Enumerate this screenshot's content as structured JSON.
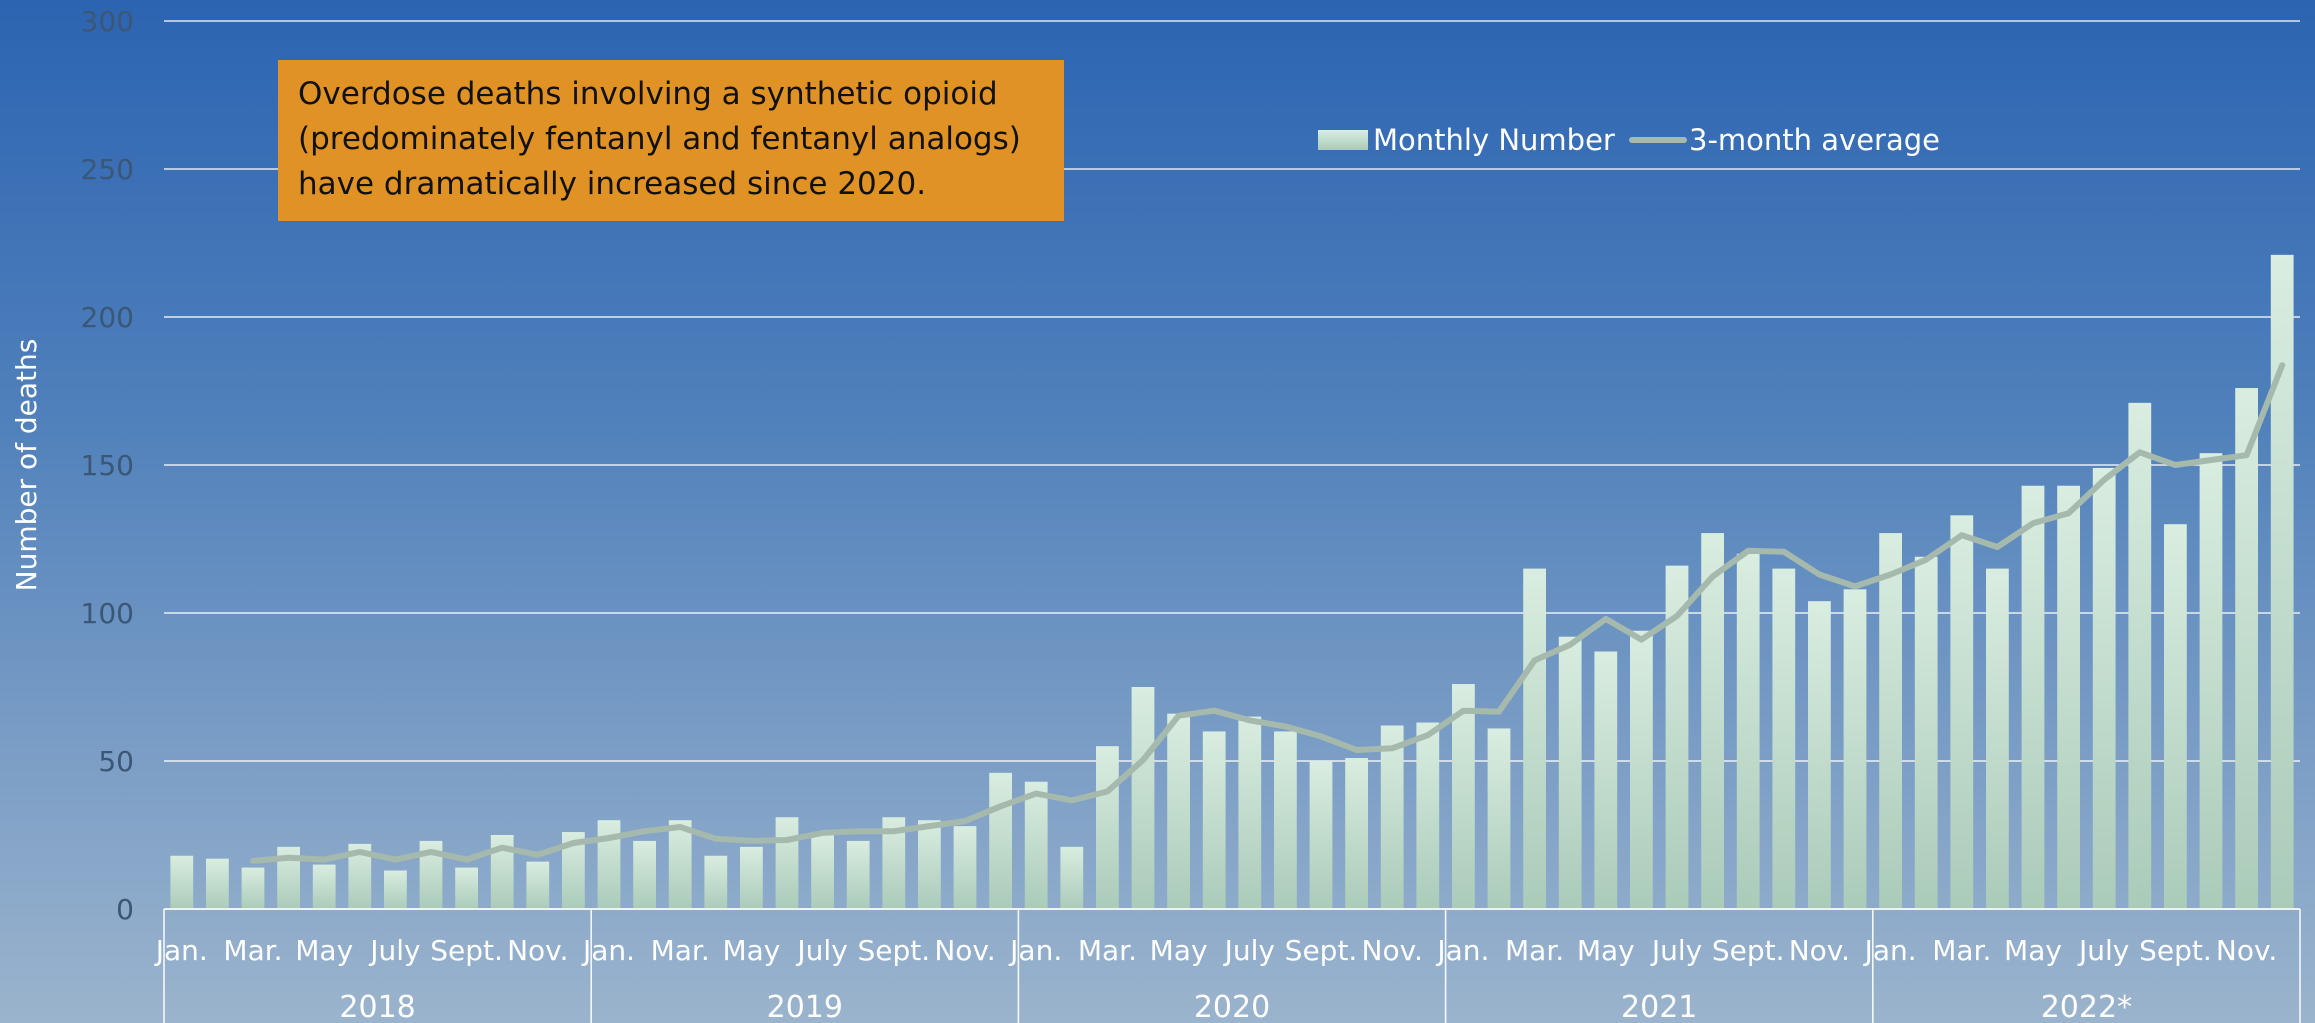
{
  "chart_data": {
    "type": "bar",
    "title": "",
    "xlabel": "",
    "ylabel": "Number of deaths",
    "ylim": [
      0,
      300
    ],
    "yticks": [
      0,
      50,
      100,
      150,
      200,
      250,
      300
    ],
    "grid": true,
    "legend_position": "top-center",
    "month_tick_labels": [
      "Jan.",
      "Mar.",
      "May",
      "July",
      "Sept.",
      "Nov."
    ],
    "years": [
      "2018",
      "2019",
      "2020",
      "2021",
      "2022*"
    ],
    "series": [
      {
        "name": "Monthly Number",
        "type": "bar",
        "color": "#c9e3d3",
        "values": [
          18,
          17,
          14,
          21,
          15,
          22,
          13,
          23,
          14,
          25,
          16,
          26,
          30,
          23,
          30,
          18,
          21,
          31,
          25,
          23,
          31,
          30,
          28,
          46,
          43,
          21,
          55,
          75,
          66,
          60,
          65,
          60,
          50,
          51,
          62,
          63,
          76,
          61,
          115,
          92,
          87,
          94,
          116,
          127,
          120,
          115,
          104,
          108,
          127,
          119,
          133,
          115,
          143,
          143,
          149,
          171,
          130,
          154,
          176,
          221
        ]
      },
      {
        "name": "3-month average",
        "type": "line",
        "color": "#a6b9ad",
        "values": [
          null,
          null,
          16.3,
          17.3,
          16.7,
          19.3,
          16.7,
          19.3,
          16.7,
          20.7,
          18.3,
          22.3,
          24,
          26.3,
          27.7,
          23.7,
          23,
          23.3,
          25.7,
          26.3,
          26.3,
          28,
          29.7,
          34.7,
          39,
          36.7,
          39.7,
          50.3,
          65.3,
          67,
          63.7,
          61.7,
          58.3,
          53.7,
          54.3,
          58.7,
          67,
          66.7,
          84,
          89.3,
          98,
          91,
          99,
          112.3,
          121,
          120.7,
          113,
          109,
          113,
          118,
          126.3,
          122.3,
          130.3,
          133.7,
          145,
          154.3,
          150,
          151.7,
          153.3,
          183.7
        ]
      }
    ]
  },
  "annotation": {
    "lines": [
      "Overdose deaths involving a synthetic opioid",
      "(predominately fentanyl and fentanyl analogs)",
      "have dramatically increased since 2020."
    ],
    "color": "#e09224"
  }
}
